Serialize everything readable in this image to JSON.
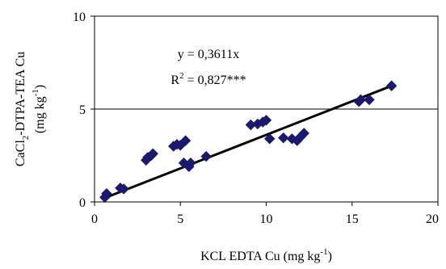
{
  "chart_data": {
    "type": "scatter",
    "title": "",
    "xlabel": {
      "pre": "KCL EDTA Cu (mg kg",
      "sup": "-1",
      "post": ")"
    },
    "ylabel": {
      "line1_pre": "CaCl",
      "line1_sub": "2",
      "line1_post": "-DTPA-TEA Cu",
      "line2_pre": "(mg kg",
      "line2_sup": "-1",
      "line2_post": ")"
    },
    "xlim": [
      0,
      20
    ],
    "ylim": [
      0,
      10
    ],
    "xticks": [
      0,
      5,
      10,
      15,
      20
    ],
    "yticks": [
      0,
      5,
      10
    ],
    "grid": {
      "horizontal_at": [
        5
      ]
    },
    "marker": "diamond",
    "marker_color": "#191970",
    "line_color": "#000000",
    "equation": "y = 0,3611x",
    "r2": {
      "pre": "R",
      "sup": "2",
      "post": " = 0,827***"
    },
    "fit": {
      "slope": 0.3611,
      "x_range": [
        0.6,
        17.3
      ]
    },
    "points": [
      [
        0.6,
        0.25
      ],
      [
        0.7,
        0.45
      ],
      [
        1.5,
        0.75
      ],
      [
        1.7,
        0.7
      ],
      [
        3.0,
        2.25
      ],
      [
        3.1,
        2.4
      ],
      [
        3.3,
        2.5
      ],
      [
        3.4,
        2.6
      ],
      [
        4.6,
        3.0
      ],
      [
        4.8,
        3.1
      ],
      [
        5.0,
        3.05
      ],
      [
        5.3,
        3.3
      ],
      [
        5.2,
        2.1
      ],
      [
        5.5,
        1.9
      ],
      [
        5.6,
        2.1
      ],
      [
        6.5,
        2.45
      ],
      [
        9.1,
        4.15
      ],
      [
        9.5,
        4.2
      ],
      [
        9.8,
        4.3
      ],
      [
        10.0,
        4.4
      ],
      [
        10.2,
        3.4
      ],
      [
        11.0,
        3.45
      ],
      [
        11.5,
        3.4
      ],
      [
        11.8,
        3.3
      ],
      [
        12.0,
        3.5
      ],
      [
        12.2,
        3.7
      ],
      [
        15.4,
        5.4
      ],
      [
        15.5,
        5.5
      ],
      [
        16.0,
        5.5
      ],
      [
        17.3,
        6.25
      ]
    ]
  }
}
